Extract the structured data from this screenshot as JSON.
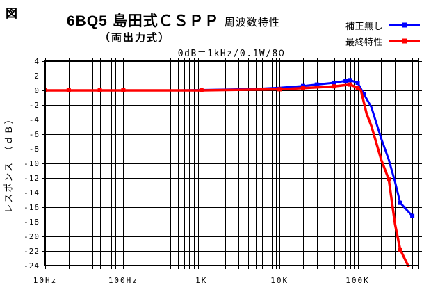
{
  "figure_label": "図",
  "title": {
    "main": "6BQ5 島田式ＣＳＰＰ",
    "suffix": "周波数特性",
    "line2": "（両出力式）",
    "reference": "0dB＝1kHz/0.1W/8Ω"
  },
  "legend": {
    "items": [
      {
        "label": "補正無し",
        "color": "#0000ff"
      },
      {
        "label": "最終特性",
        "color": "#ff0000"
      }
    ]
  },
  "chart_data": {
    "type": "line",
    "x_scale": "log",
    "x_min_hz": 10,
    "x_max_hz": 600000,
    "x_ticks": [
      {
        "hz": 10,
        "label": "10Hz"
      },
      {
        "hz": 100,
        "label": "100Hz"
      },
      {
        "hz": 1000,
        "label": "1K"
      },
      {
        "hz": 10000,
        "label": "10K"
      },
      {
        "hz": 100000,
        "label": "100K"
      }
    ],
    "ylabel": "レスポンス　（ｄＢ）",
    "ylim": [
      -24,
      4
    ],
    "y_tick_step": 2,
    "grid": true,
    "legend_position": "top-right",
    "point_format": "[hz, db, has_marker]",
    "series": [
      {
        "name": "補正無し",
        "color": "#0000ff",
        "points": [
          [
            10,
            0,
            0
          ],
          [
            20,
            0,
            0
          ],
          [
            50,
            0,
            0
          ],
          [
            100,
            0,
            0
          ],
          [
            200,
            0,
            0
          ],
          [
            500,
            0,
            0
          ],
          [
            1000,
            0.05,
            0
          ],
          [
            2000,
            0.1,
            0
          ],
          [
            5000,
            0.2,
            0
          ],
          [
            10000,
            0.35,
            0
          ],
          [
            20000,
            0.6,
            1
          ],
          [
            30000,
            0.8,
            1
          ],
          [
            50000,
            1.05,
            1
          ],
          [
            70000,
            1.3,
            1
          ],
          [
            80000,
            1.4,
            1
          ],
          [
            100000,
            1.05,
            1
          ],
          [
            120000,
            -0.5,
            1
          ],
          [
            150000,
            -2.3,
            0
          ],
          [
            200000,
            -6.6,
            0
          ],
          [
            250000,
            -9.5,
            0
          ],
          [
            300000,
            -12.5,
            0
          ],
          [
            350000,
            -15.4,
            1
          ],
          [
            500000,
            -17.2,
            1
          ]
        ]
      },
      {
        "name": "最終特性",
        "color": "#ff0000",
        "points": [
          [
            10,
            0,
            1
          ],
          [
            20,
            0,
            1
          ],
          [
            50,
            0,
            1
          ],
          [
            100,
            0,
            1
          ],
          [
            200,
            0,
            0
          ],
          [
            500,
            0,
            0
          ],
          [
            1000,
            0,
            1
          ],
          [
            2000,
            0.05,
            0
          ],
          [
            5000,
            0.1,
            0
          ],
          [
            10000,
            0.15,
            1
          ],
          [
            20000,
            0.3,
            1
          ],
          [
            30000,
            0.4,
            0
          ],
          [
            50000,
            0.55,
            1
          ],
          [
            80000,
            0.8,
            1
          ],
          [
            100000,
            0.35,
            1
          ],
          [
            110000,
            0,
            0
          ],
          [
            130000,
            -3.2,
            0
          ],
          [
            150000,
            -4.9,
            0
          ],
          [
            200000,
            -9.5,
            0
          ],
          [
            250000,
            -12.2,
            1
          ],
          [
            300000,
            -18.3,
            0
          ],
          [
            350000,
            -21.8,
            1
          ],
          [
            450000,
            -24.2,
            0
          ]
        ]
      }
    ]
  }
}
